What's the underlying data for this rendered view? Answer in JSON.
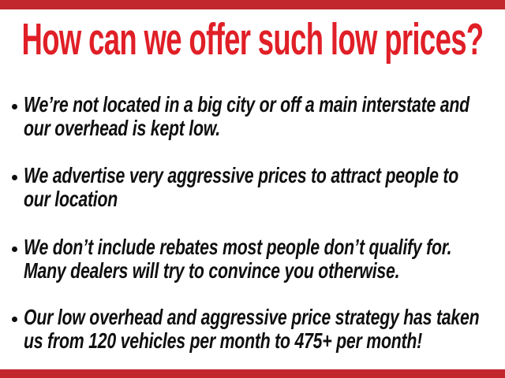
{
  "slide": {
    "title": "How can we offer such low prices?",
    "colors": {
      "title": "#e01f27",
      "accent_bar": "#c1272d",
      "body_text": "#0f0f0f",
      "background": "#ffffff"
    },
    "bullet_glyph": "•",
    "bullets": [
      {
        "l1": "We’re not located in a big city or off a main interstate and",
        "l2": "our overhead is kept low."
      },
      {
        "l1": "We advertise very aggressive prices to attract people to",
        "l2": "our location"
      },
      {
        "l1": "We don’t include rebates most people don’t qualify for.",
        "l2": "Many dealers will try to convince you otherwise."
      },
      {
        "l1": "Our low overhead and aggressive price strategy has taken",
        "l2": "us from 120 vehicles per month to 475+ per month!"
      }
    ]
  }
}
